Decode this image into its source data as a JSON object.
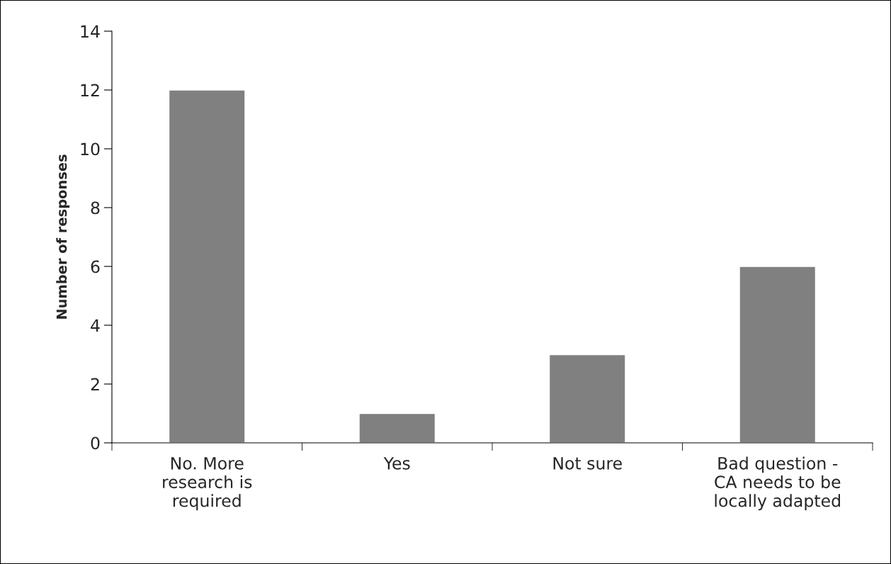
{
  "chart_data": {
    "type": "bar",
    "ylabel": "Number of responses",
    "categories": [
      "No. More\nresearch is\nrequired",
      "Yes",
      "Not sure",
      "Bad question -\nCA needs to be\nlocally adapted"
    ],
    "values": [
      12,
      1,
      3,
      6
    ],
    "color": "#808080",
    "ylim": [
      0,
      14
    ],
    "yticks": [
      0,
      2,
      4,
      6,
      8,
      10,
      12,
      14
    ],
    "grid": false,
    "legend": false
  }
}
